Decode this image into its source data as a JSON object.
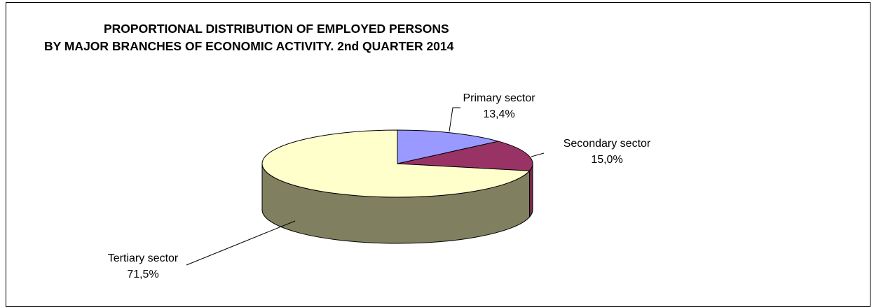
{
  "chart_data": {
    "type": "pie",
    "title_lines": [
      "PROPORTIONAL DISTRIBUTION OF EMPLOYED PERSONS",
      "BY MAJOR BRANCHES OF ECONOMIC ACTIVITY. 2nd QUARTER 2014"
    ],
    "slices": [
      {
        "name": "Primary sector",
        "value": 13.4,
        "label": "13,4%",
        "color": "#9999ff"
      },
      {
        "name": "Secondary sector",
        "value": 15.0,
        "label": "15,0%",
        "color": "#993366"
      },
      {
        "name": "Tertiary sector",
        "value": 71.5,
        "label": "71,5%",
        "color": "#ffffcc"
      }
    ],
    "side_colors": {
      "Secondary sector": "#7a2850",
      "Tertiary sector": "#808060"
    },
    "style": "3d-pie"
  }
}
